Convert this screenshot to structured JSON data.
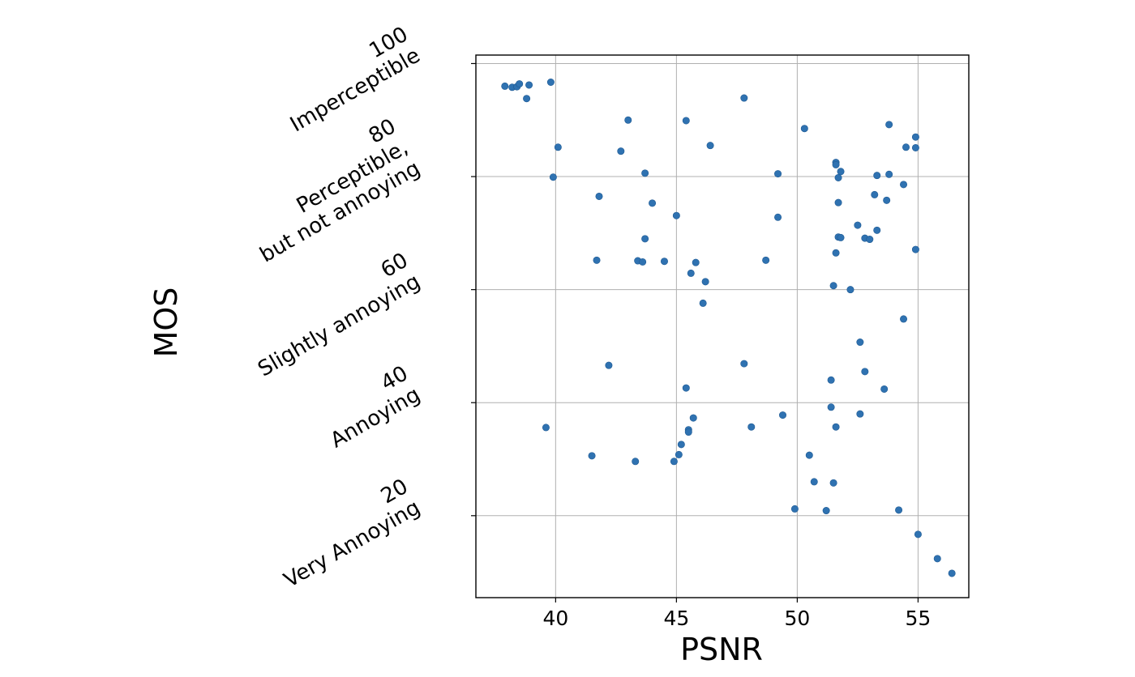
{
  "chart_data": {
    "type": "scatter",
    "xlabel": "PSNR",
    "ylabel": "MOS",
    "xlim": [
      36.7,
      57.1
    ],
    "ylim": [
      5.5,
      101.5
    ],
    "grid": true,
    "marker_color": "#2f72b1",
    "x_ticks": [
      {
        "value": 40,
        "label": "40"
      },
      {
        "value": 45,
        "label": "45"
      },
      {
        "value": 50,
        "label": "50"
      },
      {
        "value": 55,
        "label": "55"
      }
    ],
    "y_ticks": [
      {
        "value": 100,
        "label": "100",
        "desc": "Imperceptible"
      },
      {
        "value": 80,
        "label": "80",
        "desc": "Perceptible,\nbut not annoying"
      },
      {
        "value": 60,
        "label": "60",
        "desc": "Slightly annoying"
      },
      {
        "value": 40,
        "label": "40",
        "desc": "Annoying"
      },
      {
        "value": 20,
        "label": "20",
        "desc": "Very Annoying"
      }
    ],
    "points": [
      [
        37.9,
        96.0
      ],
      [
        38.2,
        95.8
      ],
      [
        38.4,
        95.9
      ],
      [
        38.5,
        96.4
      ],
      [
        38.9,
        96.2
      ],
      [
        38.8,
        93.8
      ],
      [
        39.8,
        96.7
      ],
      [
        39.6,
        35.6
      ],
      [
        39.9,
        79.9
      ],
      [
        40.1,
        85.2
      ],
      [
        41.5,
        30.6
      ],
      [
        41.7,
        65.2
      ],
      [
        41.8,
        76.5
      ],
      [
        42.2,
        46.6
      ],
      [
        42.7,
        84.5
      ],
      [
        43.0,
        90.0
      ],
      [
        43.3,
        29.6
      ],
      [
        43.4,
        65.1
      ],
      [
        43.6,
        64.9
      ],
      [
        43.7,
        69.0
      ],
      [
        43.7,
        80.6
      ],
      [
        44.0,
        75.3
      ],
      [
        44.5,
        65.0
      ],
      [
        44.9,
        29.6
      ],
      [
        45.0,
        73.1
      ],
      [
        45.1,
        30.8
      ],
      [
        45.2,
        32.6
      ],
      [
        45.4,
        42.6
      ],
      [
        45.4,
        89.9
      ],
      [
        45.5,
        35.2
      ],
      [
        45.5,
        34.8
      ],
      [
        45.6,
        62.9
      ],
      [
        45.7,
        37.3
      ],
      [
        45.8,
        64.8
      ],
      [
        46.2,
        61.4
      ],
      [
        46.1,
        57.6
      ],
      [
        46.4,
        85.5
      ],
      [
        47.8,
        93.9
      ],
      [
        47.8,
        46.9
      ],
      [
        48.1,
        35.7
      ],
      [
        48.7,
        65.2
      ],
      [
        49.2,
        80.5
      ],
      [
        49.2,
        72.8
      ],
      [
        49.4,
        37.8
      ],
      [
        49.9,
        21.2
      ],
      [
        50.3,
        88.5
      ],
      [
        50.5,
        30.7
      ],
      [
        50.7,
        26.0
      ],
      [
        51.2,
        20.9
      ],
      [
        51.4,
        39.2
      ],
      [
        51.4,
        44.0
      ],
      [
        51.5,
        60.7
      ],
      [
        51.5,
        25.8
      ],
      [
        51.6,
        82.5
      ],
      [
        51.6,
        82.1
      ],
      [
        51.6,
        66.5
      ],
      [
        51.6,
        35.7
      ],
      [
        51.7,
        79.8
      ],
      [
        51.7,
        75.4
      ],
      [
        51.7,
        69.3
      ],
      [
        51.8,
        69.2
      ],
      [
        51.8,
        80.9
      ],
      [
        52.2,
        60.0
      ],
      [
        52.5,
        71.4
      ],
      [
        52.6,
        50.7
      ],
      [
        52.6,
        38.0
      ],
      [
        52.8,
        69.1
      ],
      [
        52.8,
        45.5
      ],
      [
        53.0,
        68.9
      ],
      [
        53.2,
        76.8
      ],
      [
        53.3,
        70.5
      ],
      [
        53.3,
        80.2
      ],
      [
        53.6,
        42.4
      ],
      [
        53.7,
        75.8
      ],
      [
        53.8,
        80.4
      ],
      [
        53.8,
        89.2
      ],
      [
        54.2,
        21.0
      ],
      [
        54.4,
        54.8
      ],
      [
        54.4,
        78.6
      ],
      [
        54.5,
        85.2
      ],
      [
        54.9,
        87.0
      ],
      [
        54.9,
        85.1
      ],
      [
        54.9,
        67.1
      ],
      [
        55.0,
        16.7
      ],
      [
        55.8,
        12.4
      ],
      [
        56.4,
        9.8
      ]
    ]
  }
}
